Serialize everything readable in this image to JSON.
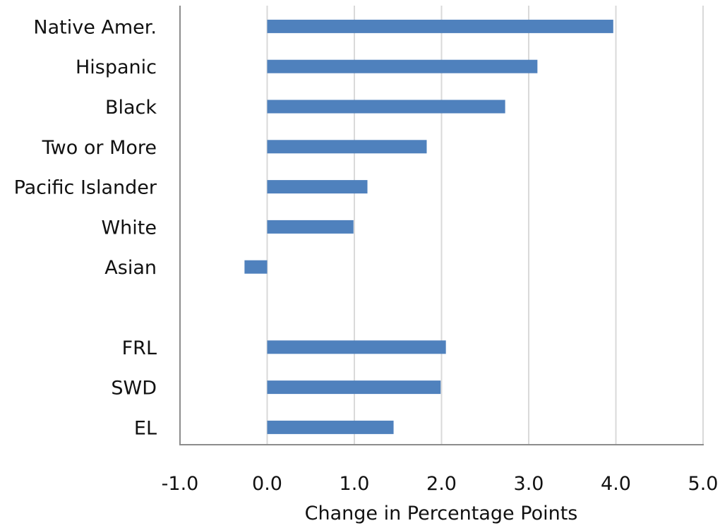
{
  "chart_data": {
    "type": "bar",
    "orientation": "horizontal",
    "categories": [
      "Native Amer.",
      "Hispanic",
      "Black",
      "Two or More",
      "Pacific Islander",
      "White",
      "Asian",
      "",
      "FRL",
      "SWD",
      "EL"
    ],
    "series": [
      {
        "values": [
          3.97,
          3.1,
          2.73,
          1.83,
          1.15,
          0.99,
          -0.26,
          null,
          2.05,
          1.99,
          1.45
        ]
      }
    ],
    "xlabel": "Change in Percentage Points",
    "ylabel": "",
    "title": "",
    "xlim": [
      -1.0,
      5.0
    ],
    "x_ticks": [
      "-1.0",
      "0.0",
      "1.0",
      "2.0",
      "3.0",
      "4.0",
      "5.0"
    ],
    "grid": "vertical",
    "legend": "none",
    "colors": {
      "bar": "#4f81bd",
      "grid": "#d9d9d9",
      "axis": "#8c8c8c"
    }
  }
}
